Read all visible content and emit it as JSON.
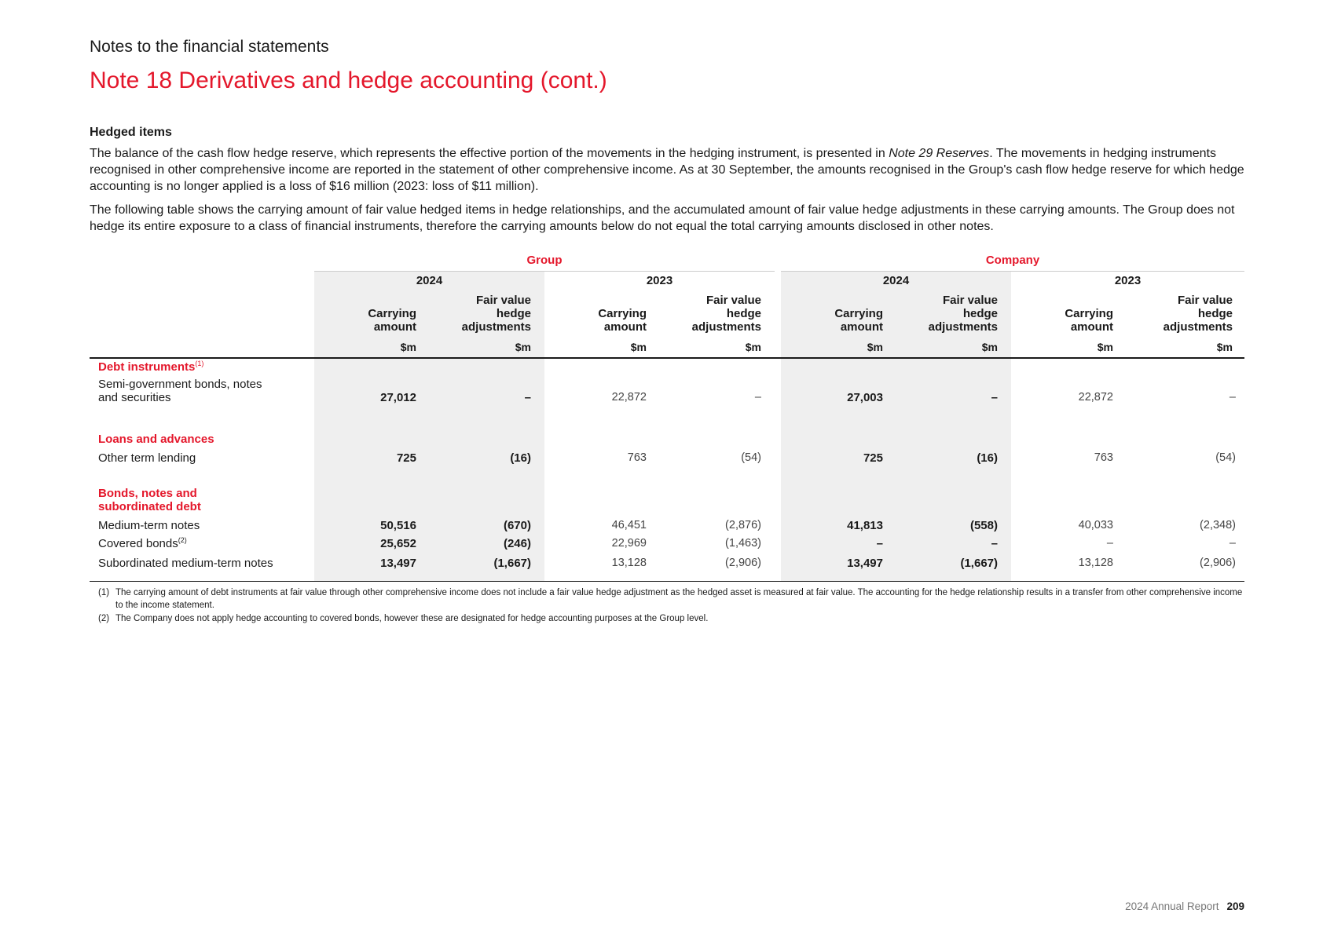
{
  "header": {
    "section": "Notes to the financial statements",
    "title": "Note 18  Derivatives and hedge accounting (cont.)"
  },
  "body": {
    "subheading": "Hedged items",
    "para1_a": "The balance of the cash flow hedge reserve, which represents the effective portion of the movements in the hedging instrument, is presented in ",
    "para1_ref": "Note 29 Reserves",
    "para1_b": ". The movements in hedging instruments recognised in other comprehensive income are reported in the statement of other comprehensive income. As at 30 September, the amounts recognised in the Group's cash flow hedge reserve for which hedge accounting is no longer applied is a loss of $16 million (2023: loss of $11 million).",
    "para2": "The following table shows the carrying amount of fair value hedged items in hedge relationships, and the accumulated amount of fair value hedge adjustments in these carrying amounts. The Group does not hedge its entire exposure to a class of financial instruments, therefore the carrying amounts below do not equal the total carrying amounts disclosed in other notes."
  },
  "table": {
    "group_label": "Group",
    "company_label": "Company",
    "years": [
      "2024",
      "2023",
      "2024",
      "2023"
    ],
    "col_carrying": "Carrying amount",
    "col_fv_1": "Fair value",
    "col_fv_2": "hedge",
    "col_fv_3": "adjustments",
    "col_carrying_1": "Carrying",
    "col_carrying_2": "amount",
    "unit": "$m",
    "cat_debt": "Debt instruments",
    "cat_debt_sup": "(1)",
    "cat_loans": "Loans and advances",
    "cat_bonds_1": "Bonds, notes and",
    "cat_bonds_2": "subordinated debt",
    "rows": [
      {
        "label_1": "Semi-government bonds, notes",
        "label_2": "and securities",
        "values": [
          "27,012",
          "–",
          "22,872",
          "–",
          "27,003",
          "–",
          "22,872",
          "–"
        ]
      },
      {
        "label_1": "Other term lending",
        "values": [
          "725",
          "(16)",
          "763",
          "(54)",
          "725",
          "(16)",
          "763",
          "(54)"
        ]
      },
      {
        "label_1": "Medium-term notes",
        "values": [
          "50,516",
          "(670)",
          "46,451",
          "(2,876)",
          "41,813",
          "(558)",
          "40,033",
          "(2,348)"
        ]
      },
      {
        "label_1": "Covered bonds",
        "sup": "(2)",
        "values": [
          "25,652",
          "(246)",
          "22,969",
          "(1,463)",
          "–",
          "–",
          "–",
          "–"
        ]
      },
      {
        "label_1": "Subordinated medium-term notes",
        "values": [
          "13,497",
          "(1,667)",
          "13,128",
          "(2,906)",
          "13,497",
          "(1,667)",
          "13,128",
          "(2,906)"
        ]
      }
    ]
  },
  "footnotes": [
    {
      "num": "(1)",
      "text": "The carrying amount of debt instruments at fair value through other comprehensive income does not include a fair value hedge adjustment as the hedged asset is measured at fair value. The accounting for the hedge relationship results in a transfer from other comprehensive income to the income statement."
    },
    {
      "num": "(2)",
      "text": "The Company does not apply hedge accounting to covered bonds, however these are designated for hedge accounting purposes at the Group level."
    }
  ],
  "footer": {
    "report": "2024 Annual Report",
    "page": "209"
  }
}
